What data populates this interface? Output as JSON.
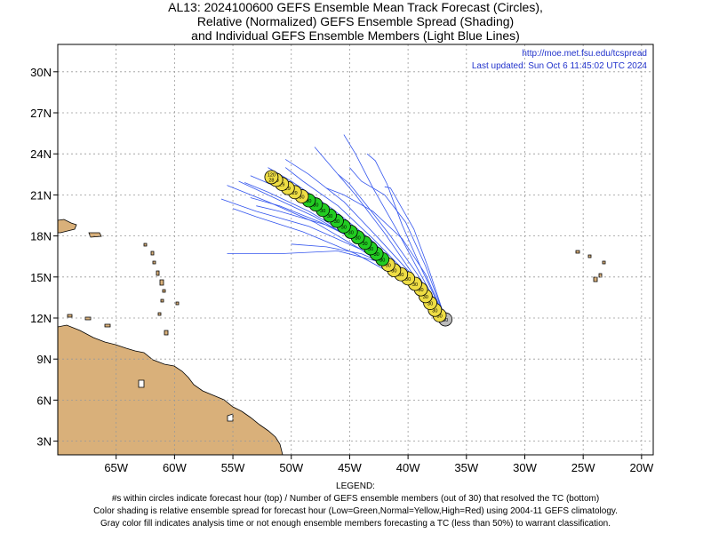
{
  "title": {
    "line1": "AL13: 2024100600 GEFS Ensemble Mean Track Forecast (Circles),",
    "line2": "Relative (Normalized) GEFS Ensemble Spread (Shading)",
    "line3": "and Individual GEFS Ensemble Members (Light Blue Lines)"
  },
  "credit": {
    "url": "http://moe.met.fsu.edu/tcspread",
    "updated": "Last updated: Sun Oct 6 11:45:02 UTC 2024"
  },
  "map": {
    "lon_range": [
      -70,
      -19
    ],
    "lat_range": [
      2,
      32
    ],
    "lat_ticks": [
      {
        "value": 3,
        "label": "3N"
      },
      {
        "value": 6,
        "label": "6N"
      },
      {
        "value": 9,
        "label": "9N"
      },
      {
        "value": 12,
        "label": "12N"
      },
      {
        "value": 15,
        "label": "15N"
      },
      {
        "value": 18,
        "label": "18N"
      },
      {
        "value": 21,
        "label": "21N"
      },
      {
        "value": 24,
        "label": "24N"
      },
      {
        "value": 27,
        "label": "27N"
      },
      {
        "value": 30,
        "label": "30N"
      }
    ],
    "lon_ticks": [
      {
        "value": -65,
        "label": "65W"
      },
      {
        "value": -60,
        "label": "60W"
      },
      {
        "value": -55,
        "label": "55W"
      },
      {
        "value": -50,
        "label": "50W"
      },
      {
        "value": -45,
        "label": "45W"
      },
      {
        "value": -40,
        "label": "40W"
      },
      {
        "value": -35,
        "label": "35W"
      },
      {
        "value": -30,
        "label": "30W"
      },
      {
        "value": -25,
        "label": "25W"
      },
      {
        "value": -20,
        "label": "20W"
      }
    ],
    "colors": {
      "land": "#d9b07a",
      "grid": "#999999",
      "member_track": "#3355ee",
      "low_spread": "#22cc22",
      "normal_spread": "#eedd44",
      "analysis": "#bbbbbb"
    },
    "mean_track": [
      {
        "lon": -36.8,
        "lat": 11.9,
        "hour": "",
        "members": "30",
        "spread": "analysis"
      },
      {
        "lon": -37.3,
        "lat": 12.2,
        "hour": "",
        "members": "30",
        "spread": "normal"
      },
      {
        "lon": -37.7,
        "lat": 12.6,
        "hour": "",
        "members": "30",
        "spread": "normal"
      },
      {
        "lon": -38.1,
        "lat": 13.1,
        "hour": "",
        "members": "30",
        "spread": "normal"
      },
      {
        "lon": -38.5,
        "lat": 13.6,
        "hour": "",
        "members": "30",
        "spread": "normal"
      },
      {
        "lon": -38.9,
        "lat": 14.1,
        "hour": "",
        "members": "30",
        "spread": "normal"
      },
      {
        "lon": -39.4,
        "lat": 14.5,
        "hour": "",
        "members": "30",
        "spread": "normal"
      },
      {
        "lon": -40.0,
        "lat": 14.9,
        "hour": "",
        "members": "30",
        "spread": "normal"
      },
      {
        "lon": -40.6,
        "lat": 15.2,
        "hour": "",
        "members": "30",
        "spread": "normal"
      },
      {
        "lon": -41.2,
        "lat": 15.5,
        "hour": "",
        "members": "30",
        "spread": "normal"
      },
      {
        "lon": -41.7,
        "lat": 15.9,
        "hour": "",
        "members": "30",
        "spread": "normal"
      },
      {
        "lon": -42.2,
        "lat": 16.3,
        "hour": "",
        "members": "30",
        "spread": "low"
      },
      {
        "lon": -42.7,
        "lat": 16.7,
        "hour": "",
        "members": "30",
        "spread": "low"
      },
      {
        "lon": -43.2,
        "lat": 17.1,
        "hour": "",
        "members": "30",
        "spread": "low"
      },
      {
        "lon": -43.7,
        "lat": 17.5,
        "hour": "",
        "members": "30",
        "spread": "low"
      },
      {
        "lon": -44.3,
        "lat": 17.9,
        "hour": "",
        "members": "30",
        "spread": "low"
      },
      {
        "lon": -44.9,
        "lat": 18.3,
        "hour": "",
        "members": "30",
        "spread": "low"
      },
      {
        "lon": -45.5,
        "lat": 18.7,
        "hour": "",
        "members": "30",
        "spread": "low"
      },
      {
        "lon": -46.1,
        "lat": 19.1,
        "hour": "",
        "members": "30",
        "spread": "low"
      },
      {
        "lon": -46.7,
        "lat": 19.5,
        "hour": "",
        "members": "30",
        "spread": "low"
      },
      {
        "lon": -47.3,
        "lat": 19.9,
        "hour": "",
        "members": "30",
        "spread": "low"
      },
      {
        "lon": -47.9,
        "lat": 20.3,
        "hour": "",
        "members": "30",
        "spread": "low"
      },
      {
        "lon": -48.5,
        "lat": 20.6,
        "hour": "",
        "members": "30",
        "spread": "low"
      },
      {
        "lon": -49.1,
        "lat": 20.9,
        "hour": "",
        "members": "30",
        "spread": "normal"
      },
      {
        "lon": -49.7,
        "lat": 21.2,
        "hour": "",
        "members": "29",
        "spread": "normal"
      },
      {
        "lon": -50.3,
        "lat": 21.5,
        "hour": "",
        "members": "29",
        "spread": "normal"
      },
      {
        "lon": -50.8,
        "lat": 21.8,
        "hour": "",
        "members": "29",
        "spread": "normal"
      },
      {
        "lon": -51.3,
        "lat": 22.1,
        "hour": "",
        "members": "29",
        "spread": "normal"
      },
      {
        "lon": -51.7,
        "lat": 22.3,
        "hour": "120",
        "members": "28",
        "spread": "normal"
      }
    ],
    "member_tracks": [
      [
        [
          -36.8,
          11.9
        ],
        [
          -40.0,
          14.6
        ],
        [
          -44.0,
          17.0
        ],
        [
          -48.0,
          19.0
        ],
        [
          -52.0,
          20.5
        ],
        [
          -55.5,
          21.7
        ]
      ],
      [
        [
          -36.8,
          11.9
        ],
        [
          -40.0,
          14.8
        ],
        [
          -44.0,
          17.4
        ],
        [
          -48.0,
          19.4
        ],
        [
          -52.0,
          21.0
        ],
        [
          -54.5,
          22.0
        ]
      ],
      [
        [
          -36.8,
          11.9
        ],
        [
          -40.0,
          15.1
        ],
        [
          -43.5,
          17.8
        ],
        [
          -47.0,
          19.8
        ],
        [
          -51.0,
          21.5
        ],
        [
          -53.5,
          22.4
        ]
      ],
      [
        [
          -36.8,
          11.9
        ],
        [
          -40.0,
          14.8
        ],
        [
          -44.0,
          17.0
        ],
        [
          -48.5,
          18.7
        ],
        [
          -53.0,
          19.8
        ],
        [
          -56.0,
          20.7
        ]
      ],
      [
        [
          -36.8,
          11.9
        ],
        [
          -40.0,
          14.6
        ],
        [
          -44.5,
          16.7
        ],
        [
          -49.0,
          18.3
        ],
        [
          -53.0,
          19.4
        ],
        [
          -55.0,
          20.0
        ]
      ],
      [
        [
          -36.8,
          11.9
        ],
        [
          -40.0,
          15.0
        ],
        [
          -43.0,
          17.6
        ],
        [
          -46.5,
          20.0
        ],
        [
          -50.0,
          22.0
        ],
        [
          -52.0,
          23.0
        ]
      ],
      [
        [
          -36.8,
          11.9
        ],
        [
          -39.5,
          15.0
        ],
        [
          -42.5,
          17.8
        ],
        [
          -45.5,
          20.5
        ],
        [
          -48.5,
          22.5
        ],
        [
          -50.5,
          23.6
        ]
      ],
      [
        [
          -36.8,
          11.9
        ],
        [
          -39.5,
          15.1
        ],
        [
          -42.0,
          18.2
        ],
        [
          -44.5,
          21.0
        ],
        [
          -46.5,
          23.0
        ],
        [
          -48.0,
          24.5
        ]
      ],
      [
        [
          -36.8,
          11.9
        ],
        [
          -39.0,
          15.3
        ],
        [
          -41.0,
          18.5
        ],
        [
          -43.0,
          21.5
        ],
        [
          -44.5,
          24.0
        ],
        [
          -45.5,
          25.4
        ]
      ],
      [
        [
          -36.8,
          11.9
        ],
        [
          -38.8,
          15.5
        ],
        [
          -40.5,
          18.8
        ],
        [
          -41.8,
          21.8
        ],
        [
          -42.8,
          23.5
        ],
        [
          -43.5,
          24.0
        ]
      ],
      [
        [
          -36.8,
          11.9
        ],
        [
          -38.5,
          15.8
        ],
        [
          -40.2,
          19.0
        ],
        [
          -42.0,
          21.0
        ],
        [
          -44.0,
          22.0
        ],
        [
          -45.0,
          23.0
        ]
      ],
      [
        [
          -36.8,
          11.9
        ],
        [
          -38.2,
          15.5
        ],
        [
          -39.5,
          18.5
        ],
        [
          -40.5,
          20.0
        ],
        [
          -41.5,
          21.5
        ],
        [
          -42.0,
          21.6
        ]
      ],
      [
        [
          -36.8,
          11.9
        ],
        [
          -38.5,
          15.2
        ],
        [
          -40.5,
          17.8
        ],
        [
          -43.0,
          19.8
        ],
        [
          -45.5,
          21.0
        ],
        [
          -47.0,
          21.5
        ]
      ],
      [
        [
          -36.8,
          11.9
        ],
        [
          -39.5,
          14.9
        ],
        [
          -43.0,
          17.2
        ],
        [
          -47.0,
          18.8
        ],
        [
          -51.0,
          19.8
        ],
        [
          -53.0,
          20.2
        ]
      ],
      [
        [
          -36.8,
          11.9
        ],
        [
          -39.0,
          14.3
        ],
        [
          -41.5,
          15.8
        ],
        [
          -44.0,
          16.7
        ],
        [
          -47.0,
          17.2
        ],
        [
          -50.0,
          17.4
        ]
      ],
      [
        [
          -36.8,
          11.9
        ],
        [
          -39.5,
          14.5
        ],
        [
          -42.0,
          16.0
        ],
        [
          -46.0,
          16.9
        ],
        [
          -51.0,
          16.7
        ],
        [
          -55.5,
          16.7
        ]
      ],
      [
        [
          -36.8,
          11.9
        ],
        [
          -40.0,
          14.9
        ],
        [
          -43.5,
          17.3
        ],
        [
          -47.5,
          19.0
        ],
        [
          -51.0,
          20.2
        ],
        [
          -53.5,
          20.8
        ]
      ],
      [
        [
          -36.8,
          11.9
        ],
        [
          -40.5,
          15.2
        ],
        [
          -44.5,
          17.8
        ],
        [
          -48.5,
          19.8
        ],
        [
          -52.0,
          21.2
        ],
        [
          -54.0,
          21.9
        ]
      ],
      [
        [
          -36.8,
          11.9
        ],
        [
          -39.8,
          15.0
        ],
        [
          -43.0,
          17.8
        ],
        [
          -46.0,
          20.2
        ],
        [
          -49.0,
          22.0
        ],
        [
          -50.5,
          23.0
        ]
      ],
      [
        [
          -36.8,
          11.9
        ],
        [
          -39.2,
          15.2
        ],
        [
          -41.5,
          18.0
        ],
        [
          -43.5,
          20.2
        ],
        [
          -45.0,
          21.8
        ],
        [
          -46.0,
          22.5
        ]
      ]
    ]
  },
  "legend": {
    "heading": "LEGEND:",
    "line1": "#s within circles indicate forecast hour (top) / Number of GEFS ensemble members (out of 30) that resolved the TC (bottom)",
    "line2": "Color shading is relative ensemble spread for forecast hour (Low=Green,Normal=Yellow,High=Red) using 2004-11 GEFS climatology.",
    "line3": "Gray color fill indicates analysis time or not enough ensemble members forecasting a TC (less than 50%) to warrant classification."
  }
}
